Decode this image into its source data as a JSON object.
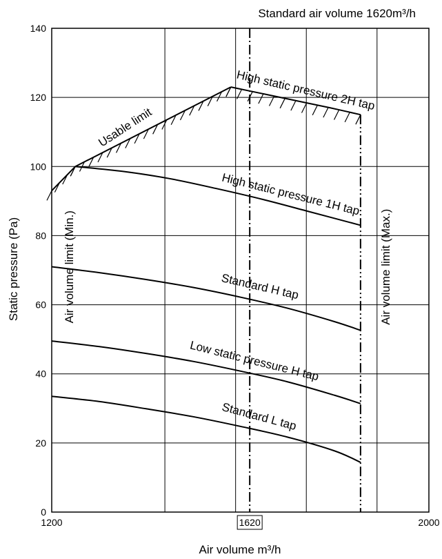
{
  "chart_data": {
    "type": "line",
    "title": "Standard air volume 1620m³/h",
    "xlabel": "Air volume m³/h",
    "ylabel": "Static pressure (Pa)",
    "xlim": [
      1200,
      2000
    ],
    "ylim": [
      0,
      140
    ],
    "x_ticks": [
      1200,
      1620,
      2000
    ],
    "x_tick_labels": [
      "1200",
      "1620",
      "2000"
    ],
    "highlighted_x_tick": "1620",
    "y_ticks": [
      0,
      20,
      40,
      60,
      80,
      100,
      120,
      140
    ],
    "y_tick_labels": [
      "0",
      "20",
      "40",
      "60",
      "80",
      "100",
      "120",
      "140"
    ],
    "x_gridlines": [
      1200,
      1440,
      1590,
      1740,
      1890,
      2000
    ],
    "grid": true,
    "series": [
      {
        "name": "High static pressure 2H tap",
        "x": [
          1580,
          1650,
          1720,
          1790,
          1855
        ],
        "y": [
          123,
          121,
          119,
          117,
          115
        ]
      },
      {
        "name": "High static pressure 1H tap",
        "x": [
          1250,
          1350,
          1450,
          1550,
          1650,
          1750,
          1855
        ],
        "y": [
          100,
          98.6,
          96.5,
          93.6,
          90.4,
          86.8,
          83
        ]
      },
      {
        "name": "Standard H tap",
        "x": [
          1200,
          1300,
          1400,
          1500,
          1600,
          1700,
          1800,
          1855
        ],
        "y": [
          71,
          69.3,
          67.3,
          65,
          62.2,
          59,
          55.1,
          52.6
        ]
      },
      {
        "name": "Low static pressure H tap",
        "x": [
          1200,
          1300,
          1400,
          1500,
          1600,
          1700,
          1800,
          1855
        ],
        "y": [
          49.5,
          47.9,
          45.9,
          43.6,
          40.8,
          37.7,
          33.8,
          31.4
        ]
      },
      {
        "name": "Standard L tap",
        "x": [
          1200,
          1300,
          1400,
          1500,
          1600,
          1700,
          1800,
          1855
        ],
        "y": [
          33.5,
          32,
          29.9,
          27.6,
          24.8,
          21.7,
          17.7,
          14.4
        ]
      },
      {
        "name": "Usable limit",
        "x": [
          1200,
          1250,
          1580
        ],
        "y": [
          93,
          100,
          123
        ]
      }
    ],
    "reference_lines": [
      {
        "label": "Air volume limit (Min.)",
        "x": 1200
      },
      {
        "label": "Air volume limit (Max.)",
        "x": 1855
      },
      {
        "label": "1620",
        "x": 1620
      }
    ]
  }
}
